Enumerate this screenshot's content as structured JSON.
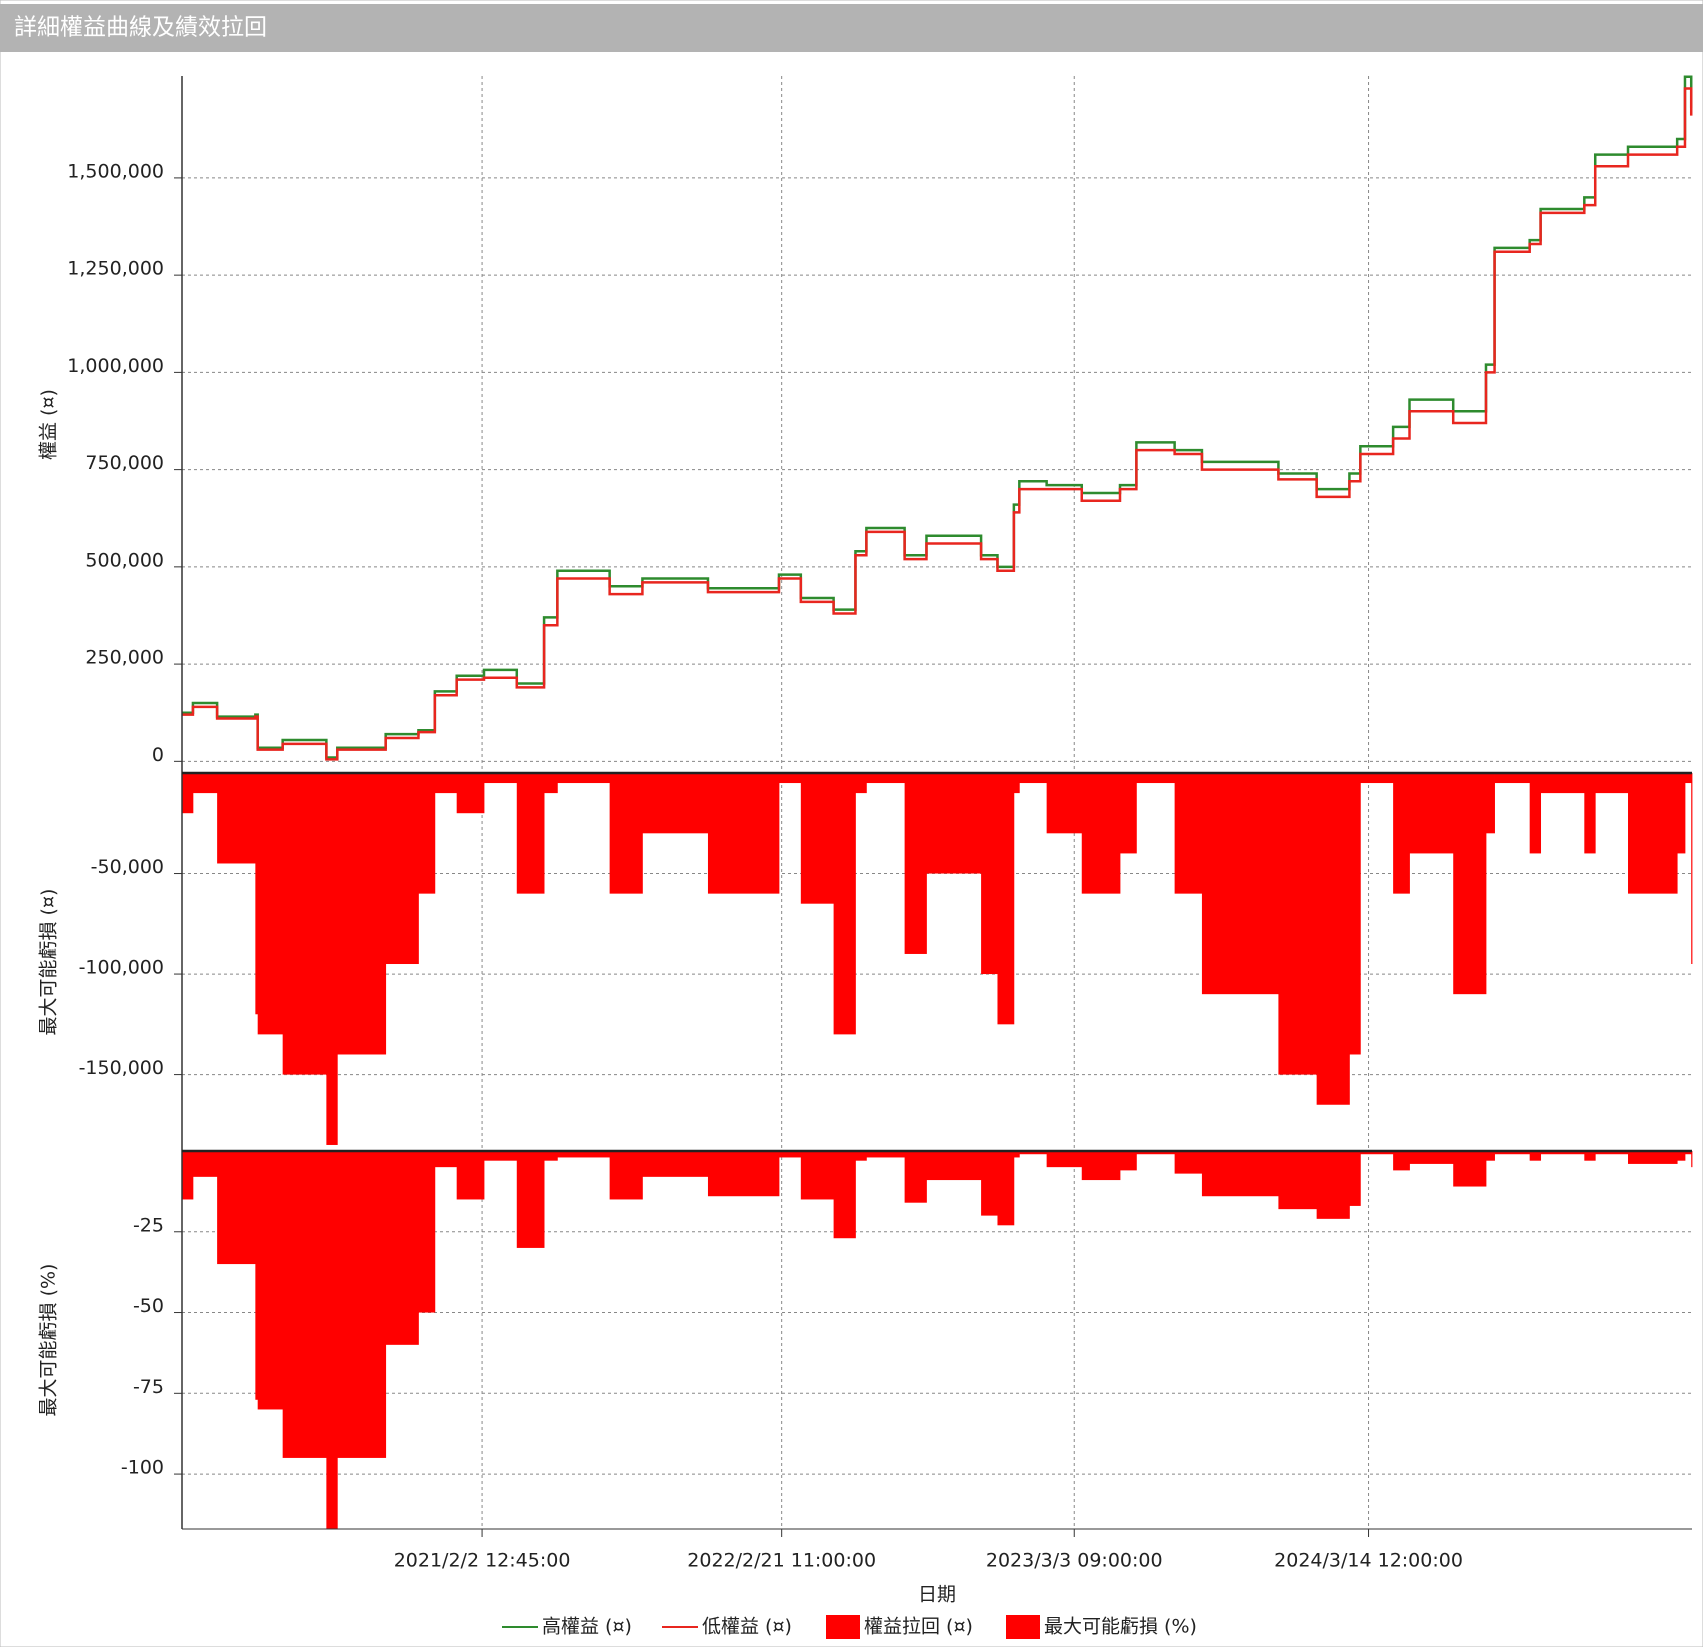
{
  "header": {
    "title": "詳細權益曲線及績效拉回"
  },
  "chart_data": [
    {
      "type": "step-line",
      "ylabel": "權益 (¤)",
      "x": [
        "2020-01-15",
        "2020-01-29",
        "2020-02-29",
        "2020-04-18",
        "2020-04-21",
        "2020-05-23",
        "2020-07-18",
        "2020-08-01",
        "2020-10-02",
        "2020-11-13",
        "2020-12-04",
        "2021-01-01",
        "2021-02-05",
        "2021-03-19",
        "2021-04-23",
        "2021-05-10",
        "2021-07-16",
        "2021-08-27",
        "2021-11-19",
        "2022-02-18",
        "2022-03-18",
        "2022-04-29",
        "2022-05-27",
        "2022-06-10",
        "2022-07-29",
        "2022-08-26",
        "2022-11-04",
        "2022-11-25",
        "2022-12-16",
        "2022-12-23",
        "2023-01-27",
        "2023-03-13",
        "2023-05-01",
        "2023-05-22",
        "2023-07-10",
        "2023-08-14",
        "2023-11-20",
        "2024-01-08",
        "2024-02-19",
        "2024-03-04",
        "2024-04-15",
        "2024-05-06",
        "2024-07-01",
        "2024-08-12",
        "2024-08-23",
        "2024-10-07",
        "2024-10-21",
        "2024-12-16",
        "2024-12-30",
        "2025-02-10",
        "2025-04-14",
        "2025-04-24",
        "2025-05-02"
      ],
      "series": [
        {
          "name": "高權益 (¤)",
          "color": "#2e8b2e",
          "values": [
            125000,
            150000,
            115000,
            120000,
            35000,
            55000,
            10000,
            35000,
            70000,
            80000,
            180000,
            220000,
            235000,
            200000,
            370000,
            490000,
            450000,
            470000,
            445000,
            480000,
            420000,
            390000,
            540000,
            600000,
            530000,
            580000,
            530000,
            500000,
            660000,
            720000,
            710000,
            690000,
            710000,
            820000,
            800000,
            770000,
            740000,
            700000,
            740000,
            810000,
            860000,
            930000,
            900000,
            1020000,
            1320000,
            1340000,
            1420000,
            1450000,
            1560000,
            1580000,
            1600000,
            1760000,
            1680000
          ]
        },
        {
          "name": "低權益 (¤)",
          "color": "#e8261f",
          "values": [
            120000,
            140000,
            110000,
            115000,
            30000,
            45000,
            5000,
            30000,
            60000,
            75000,
            170000,
            210000,
            215000,
            190000,
            350000,
            470000,
            430000,
            460000,
            435000,
            470000,
            410000,
            380000,
            530000,
            590000,
            520000,
            560000,
            520000,
            490000,
            640000,
            700000,
            700000,
            670000,
            700000,
            800000,
            790000,
            750000,
            725000,
            680000,
            720000,
            790000,
            830000,
            900000,
            870000,
            1000000,
            1310000,
            1330000,
            1410000,
            1430000,
            1530000,
            1560000,
            1580000,
            1730000,
            1660000
          ]
        }
      ],
      "ylim": [
        -30000,
        1762000
      ],
      "yticks": [
        {
          "value": 0,
          "label": "0"
        },
        {
          "value": 250000,
          "label": "250,000"
        },
        {
          "value": 500000,
          "label": "500,000"
        },
        {
          "value": 750000,
          "label": "750,000"
        },
        {
          "value": 1000000,
          "label": "1,000,000"
        },
        {
          "value": 1250000,
          "label": "1,250,000"
        },
        {
          "value": 1500000,
          "label": "1,500,000"
        }
      ],
      "grid": true
    },
    {
      "type": "step-area",
      "ylabel": "最大可能虧損 (¤)",
      "x": [
        "2020-01-15",
        "2020-01-29",
        "2020-02-29",
        "2020-04-18",
        "2020-04-21",
        "2020-05-23",
        "2020-07-18",
        "2020-08-01",
        "2020-10-02",
        "2020-11-13",
        "2020-12-04",
        "2021-01-01",
        "2021-02-05",
        "2021-03-19",
        "2021-04-23",
        "2021-05-10",
        "2021-07-16",
        "2021-08-27",
        "2021-11-19",
        "2022-02-18",
        "2022-03-18",
        "2022-04-29",
        "2022-05-27",
        "2022-06-10",
        "2022-07-29",
        "2022-08-26",
        "2022-11-04",
        "2022-11-25",
        "2022-12-16",
        "2022-12-23",
        "2023-01-27",
        "2023-03-13",
        "2023-05-01",
        "2023-05-22",
        "2023-07-10",
        "2023-08-14",
        "2023-11-20",
        "2024-01-08",
        "2024-02-19",
        "2024-03-04",
        "2024-04-15",
        "2024-05-06",
        "2024-07-01",
        "2024-08-12",
        "2024-08-23",
        "2024-10-07",
        "2024-10-21",
        "2024-12-16",
        "2024-12-30",
        "2025-02-10",
        "2025-04-14",
        "2025-04-24",
        "2025-05-02"
      ],
      "series": [
        {
          "name": "權益拉回 (¤)",
          "color": "#ff0000",
          "values": [
            -20000,
            -10000,
            -45000,
            -120000,
            -130000,
            -150000,
            -185000,
            -140000,
            -95000,
            -60000,
            -10000,
            -20000,
            -5000,
            -60000,
            -10000,
            -5000,
            -60000,
            -30000,
            -60000,
            -5000,
            -65000,
            -130000,
            -10000,
            -5000,
            -90000,
            -50000,
            -100000,
            -125000,
            -10000,
            -5000,
            -30000,
            -60000,
            -40000,
            -5000,
            -60000,
            -110000,
            -150000,
            -165000,
            -140000,
            -5000,
            -60000,
            -40000,
            -110000,
            -30000,
            -5000,
            -40000,
            -10000,
            -40000,
            -10000,
            -60000,
            -40000,
            -5000,
            -95000
          ]
        }
      ],
      "ylim": [
        -188000,
        0
      ],
      "yticks": [
        {
          "value": -50000,
          "label": "-50,000"
        },
        {
          "value": -100000,
          "label": "-100,000"
        },
        {
          "value": -150000,
          "label": "-150,000"
        }
      ],
      "grid": true
    },
    {
      "type": "step-area",
      "ylabel": "最大可能虧損 (%)",
      "xlabel": "日期",
      "x": [
        "2020-01-15",
        "2020-01-29",
        "2020-02-29",
        "2020-04-18",
        "2020-04-21",
        "2020-05-23",
        "2020-07-18",
        "2020-08-01",
        "2020-10-02",
        "2020-11-13",
        "2020-12-04",
        "2021-01-01",
        "2021-02-05",
        "2021-03-19",
        "2021-04-23",
        "2021-05-10",
        "2021-07-16",
        "2021-08-27",
        "2021-11-19",
        "2022-02-18",
        "2022-03-18",
        "2022-04-29",
        "2022-05-27",
        "2022-06-10",
        "2022-07-29",
        "2022-08-26",
        "2022-11-04",
        "2022-11-25",
        "2022-12-16",
        "2022-12-23",
        "2023-01-27",
        "2023-03-13",
        "2023-05-01",
        "2023-05-22",
        "2023-07-10",
        "2023-08-14",
        "2023-11-20",
        "2024-01-08",
        "2024-02-19",
        "2024-03-04",
        "2024-04-15",
        "2024-05-06",
        "2024-07-01",
        "2024-08-12",
        "2024-08-23",
        "2024-10-07",
        "2024-10-21",
        "2024-12-16",
        "2024-12-30",
        "2025-02-10",
        "2025-04-14",
        "2025-04-24",
        "2025-05-02"
      ],
      "series": [
        {
          "name": "最大可能虧損 (%)",
          "color": "#ff0000",
          "values": [
            -15,
            -8,
            -35,
            -77,
            -80,
            -95,
            -117,
            -95,
            -60,
            -50,
            -5,
            -15,
            -3,
            -30,
            -3,
            -2,
            -15,
            -8,
            -14,
            -2,
            -15,
            -27,
            -3,
            -2,
            -16,
            -9,
            -20,
            -23,
            -2,
            -1,
            -5,
            -9,
            -6,
            -1,
            -7,
            -14,
            -18,
            -21,
            -17,
            -1,
            -6,
            -4,
            -11,
            -3,
            -1,
            -3,
            -1,
            -3,
            -1,
            -4,
            -3,
            -1,
            -5
          ]
        }
      ],
      "ylim": [
        -117,
        0
      ],
      "yticks": [
        -25,
        -50,
        -75,
        -100
      ],
      "xlim": [
        "2020-01-15",
        "2025-05-03"
      ],
      "xticks": [
        {
          "value": "2021-02-02T12:45:00",
          "label": "2021/2/2 12:45:00"
        },
        {
          "value": "2022-02-21T11:00:00",
          "label": "2022/2/21 11:00:00"
        },
        {
          "value": "2023-03-03T09:00:00",
          "label": "2023/3/3 09:00:00"
        },
        {
          "value": "2024-03-14T12:00:00",
          "label": "2024/3/14 12:00:00"
        }
      ],
      "grid": true
    }
  ]
}
